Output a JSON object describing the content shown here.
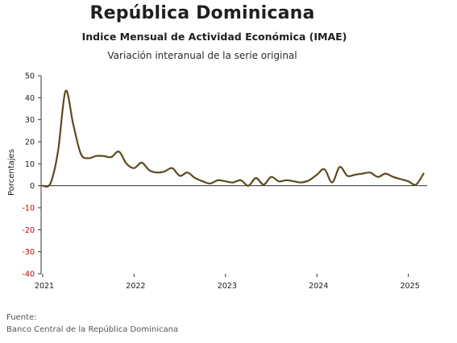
{
  "header": {
    "title": "República Dominicana",
    "subtitle": "Indice Mensual de Actividad Económica (IMAE)",
    "subtitle2": "Variación interanual de la serie original"
  },
  "footer": {
    "source_label": "Fuente:",
    "source_value": "Banco Central de la República Dominicana"
  },
  "colors": {
    "line": "#5c4a1e",
    "axis": "#333333",
    "negative_tick": "#c00000",
    "tick": "#1a1a1a"
  },
  "chart_data": {
    "type": "line",
    "title": "",
    "xlabel": "",
    "ylabel": "Porcentajes",
    "ylim": [
      -40,
      50
    ],
    "yticks": [
      "50",
      "40",
      "30",
      "20",
      "10",
      "0",
      "-10",
      "-20",
      "-30",
      "-40"
    ],
    "xticks": [
      "2021",
      "2022",
      "2023",
      "2024",
      "2025"
    ],
    "grid": false,
    "x": [
      "2021-01",
      "2021-02",
      "2021-03",
      "2021-04",
      "2021-05",
      "2021-06",
      "2021-07",
      "2021-08",
      "2021-09",
      "2021-10",
      "2021-11",
      "2021-12",
      "2022-01",
      "2022-02",
      "2022-03",
      "2022-04",
      "2022-05",
      "2022-06",
      "2022-07",
      "2022-08",
      "2022-09",
      "2022-10",
      "2022-11",
      "2022-12",
      "2023-01",
      "2023-02",
      "2023-03",
      "2023-04",
      "2023-05",
      "2023-06",
      "2023-07",
      "2023-08",
      "2023-09",
      "2023-10",
      "2023-11",
      "2023-12",
      "2024-01",
      "2024-02",
      "2024-03",
      "2024-04",
      "2024-05",
      "2024-06",
      "2024-07",
      "2024-08",
      "2024-09",
      "2024-10",
      "2024-11",
      "2024-12",
      "2025-01",
      "2025-02",
      "2025-03"
    ],
    "series": [
      {
        "values": [
          0.0,
          1.0,
          15.5,
          43.0,
          28.0,
          14.5,
          12.5,
          13.5,
          13.5,
          13.0,
          15.5,
          10.0,
          8.0,
          10.5,
          7.0,
          6.0,
          6.5,
          8.0,
          4.5,
          6.0,
          3.5,
          2.0,
          1.0,
          2.5,
          2.0,
          1.5,
          2.5,
          0.0,
          3.5,
          0.5,
          4.0,
          2.0,
          2.5,
          2.0,
          1.5,
          2.5,
          5.0,
          7.5,
          1.5,
          8.5,
          4.5,
          5.0,
          5.5,
          6.0,
          4.0,
          5.5,
          4.0,
          3.0,
          2.0,
          0.5,
          5.5
        ]
      }
    ]
  }
}
